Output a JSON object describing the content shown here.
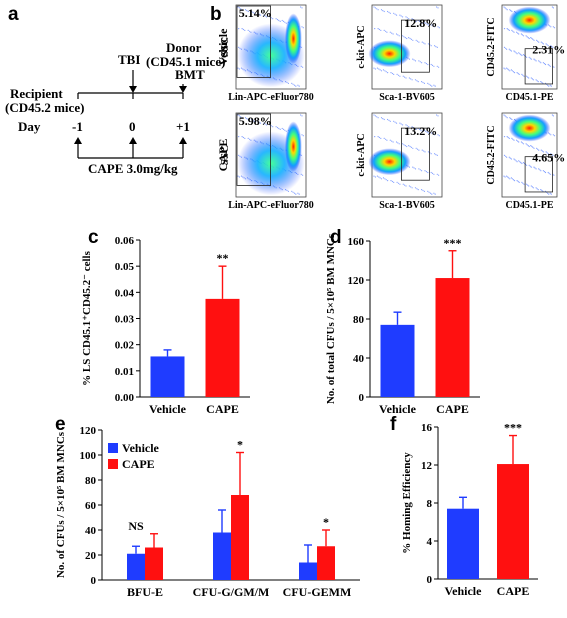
{
  "panel_labels": {
    "a": "a",
    "b": "b",
    "c": "c",
    "d": "d",
    "e": "e",
    "f": "f"
  },
  "timeline": {
    "recipient_line1": "Recipient",
    "recipient_line2": "(CD45.2 mice)",
    "tbi": "TBI",
    "donor_line1": "Donor",
    "donor_line2": "(CD45.1 mice)",
    "bmt": "BMT",
    "day_label": "Day",
    "days": [
      "-1",
      "0",
      "+1"
    ],
    "treatment": "CAPE 3.0mg/kg"
  },
  "flow": {
    "rows": [
      {
        "label": "Vehicle",
        "gates": [
          "5.14%",
          "12.8%",
          "2.31%"
        ]
      },
      {
        "label": "CAPE",
        "gates": [
          "5.98%",
          "13.2%",
          "4.65%"
        ]
      }
    ],
    "plots": [
      {
        "ylabel": "SSC",
        "xlabel": "Lin-APC-eFluor780"
      },
      {
        "ylabel": "c-kit-APC",
        "xlabel": "Sca-1-BV605"
      },
      {
        "ylabel": "CD45.2-FITC",
        "xlabel": "CD45.1-PE"
      }
    ]
  },
  "colors": {
    "vehicle": "#1f3cff",
    "cape": "#ff1010"
  },
  "chart_data": [
    {
      "panel": "c",
      "type": "bar",
      "categories": [
        "Vehicle",
        "CAPE"
      ],
      "values": [
        0.0155,
        0.0375
      ],
      "errors": [
        0.0025,
        0.0125
      ],
      "ylabel": "% LS CD45.1⁺CD45.2⁻ cells",
      "ylim": [
        0,
        0.06
      ],
      "yticks": [
        "0.00",
        "0.01",
        "0.02",
        "0.03",
        "0.04",
        "0.05",
        "0.06"
      ],
      "annotations": [
        "",
        "**"
      ]
    },
    {
      "panel": "d",
      "type": "bar",
      "categories": [
        "Vehicle",
        "CAPE"
      ],
      "values": [
        74,
        122
      ],
      "errors": [
        13,
        28
      ],
      "ylabel": "No. of total CFUs / 5×10⁵ BM MNCs",
      "ylim": [
        0,
        160
      ],
      "yticks": [
        "0",
        "40",
        "80",
        "120",
        "160"
      ],
      "annotations": [
        "",
        "***"
      ]
    },
    {
      "panel": "e",
      "type": "bar",
      "categories": [
        "BFU-E",
        "CFU-G/GM/M",
        "CFU-GEMM"
      ],
      "series": [
        {
          "name": "Vehicle",
          "values": [
            21,
            38,
            14
          ],
          "errors": [
            6,
            18,
            14
          ]
        },
        {
          "name": "CAPE",
          "values": [
            26,
            68,
            27
          ],
          "errors": [
            11,
            34,
            13
          ]
        }
      ],
      "ylabel": "No. of CFUs / 5×10⁵ BM MNCs",
      "ylim": [
        0,
        120
      ],
      "yticks": [
        "0",
        "20",
        "40",
        "60",
        "80",
        "100",
        "120"
      ],
      "annotations": [
        "NS",
        "*",
        "*"
      ],
      "legend": "top-left"
    },
    {
      "panel": "f",
      "type": "bar",
      "categories": [
        "Vehicle",
        "CAPE"
      ],
      "values": [
        7.4,
        12.1
      ],
      "errors": [
        1.2,
        3.0
      ],
      "ylabel": "% Homing Efficiency",
      "ylim": [
        0,
        16
      ],
      "yticks": [
        "0",
        "4",
        "8",
        "12",
        "16"
      ],
      "annotations": [
        "",
        "***"
      ]
    }
  ]
}
